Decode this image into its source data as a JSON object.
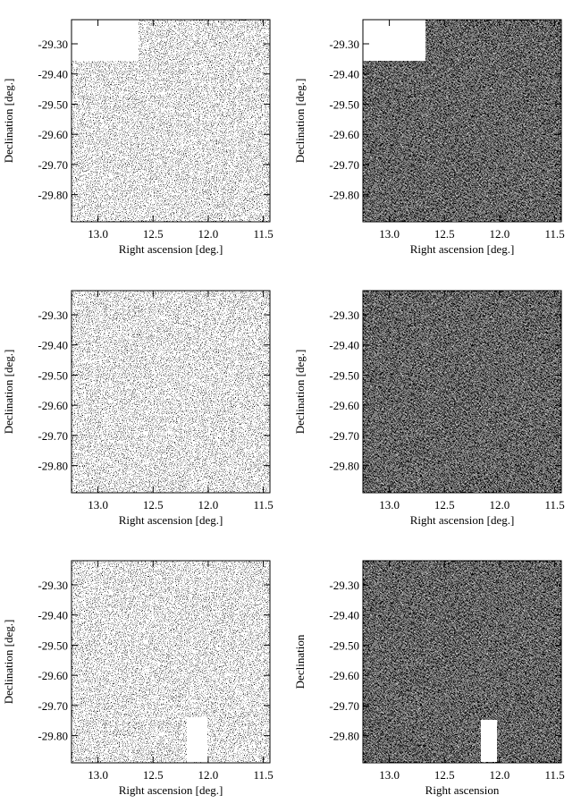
{
  "chart_data": [
    {
      "type": "scatter",
      "xlabel": "Right ascension [deg.]",
      "ylabel": "Declination [deg.]",
      "density": "sparse",
      "xlim": [
        13.24,
        11.44
      ],
      "ylim": [
        -29.89,
        -29.22
      ],
      "xticks": [
        {
          "value": 13,
          "label": "13.0"
        },
        12.5,
        {
          "value": 12,
          "label": "12.0"
        },
        11.5
      ],
      "yticks": [
        {
          "value": -29.3,
          "label": "-29.30"
        },
        {
          "value": -29.4,
          "label": "-29.40"
        },
        {
          "value": -29.5,
          "label": "-29.50"
        },
        {
          "value": -29.6,
          "label": "-29.60"
        },
        {
          "value": -29.7,
          "label": "-29.70"
        },
        {
          "value": -29.8,
          "label": "-29.80"
        }
      ]
    },
    {
      "type": "scatter",
      "xlabel": "Right ascension [deg.]",
      "ylabel": "Declination [deg.]",
      "density": "dense",
      "xlim": [
        13.24,
        11.44
      ],
      "ylim": [
        -29.89,
        -29.22
      ],
      "xticks": [
        {
          "value": 13,
          "label": "13.0"
        },
        12.5,
        {
          "value": 12,
          "label": "12.0"
        },
        11.5
      ],
      "yticks": [
        {
          "value": -29.3,
          "label": "-29.30"
        },
        {
          "value": -29.4,
          "label": "-29.40"
        },
        {
          "value": -29.5,
          "label": "-29.50"
        },
        {
          "value": -29.6,
          "label": "-29.60"
        },
        {
          "value": -29.7,
          "label": "-29.70"
        },
        {
          "value": -29.8,
          "label": "-29.80"
        }
      ]
    },
    {
      "type": "scatter",
      "xlabel": "Right ascension [deg.]",
      "ylabel": "Declination [deg.]",
      "density": "sparse",
      "xlim": [
        13.24,
        11.44
      ],
      "ylim": [
        -29.89,
        -29.22
      ],
      "xticks": [
        {
          "value": 13,
          "label": "13.0"
        },
        12.5,
        {
          "value": 12,
          "label": "12.0"
        },
        11.5
      ],
      "yticks": [
        {
          "value": -29.3,
          "label": "-29.30"
        },
        {
          "value": -29.4,
          "label": "-29.40"
        },
        {
          "value": -29.5,
          "label": "-29.50"
        },
        {
          "value": -29.6,
          "label": "-29.60"
        },
        {
          "value": -29.7,
          "label": "-29.70"
        },
        {
          "value": -29.8,
          "label": "-29.80"
        }
      ]
    },
    {
      "type": "scatter",
      "xlabel": "Right ascension [deg.]",
      "ylabel": "Declination [deg.]",
      "density": "dense",
      "xlim": [
        13.24,
        11.44
      ],
      "ylim": [
        -29.89,
        -29.22
      ],
      "xticks": [
        {
          "value": 13,
          "label": "13.0"
        },
        12.5,
        {
          "value": 12,
          "label": "12.0"
        },
        11.5
      ],
      "yticks": [
        {
          "value": -29.3,
          "label": "-29.30"
        },
        {
          "value": -29.4,
          "label": "-29.40"
        },
        {
          "value": -29.5,
          "label": "-29.50"
        },
        {
          "value": -29.6,
          "label": "-29.60"
        },
        {
          "value": -29.7,
          "label": "-29.70"
        },
        {
          "value": -29.8,
          "label": "-29.80"
        }
      ]
    },
    {
      "type": "scatter",
      "xlabel": "Right ascension [deg.]",
      "ylabel": "Declination [deg.]",
      "density": "sparse",
      "xlim": [
        13.24,
        11.44
      ],
      "ylim": [
        -29.89,
        -29.22
      ],
      "xticks": [
        {
          "value": 13,
          "label": "13.0"
        },
        12.5,
        {
          "value": 12,
          "label": "12.0"
        },
        11.5
      ],
      "yticks": [
        {
          "value": -29.3,
          "label": "-29.30"
        },
        {
          "value": -29.4,
          "label": "-29.40"
        },
        {
          "value": -29.5,
          "label": "-29.50"
        },
        {
          "value": -29.6,
          "label": "-29.60"
        },
        {
          "value": -29.7,
          "label": "-29.70"
        },
        {
          "value": -29.8,
          "label": "-29.80"
        }
      ]
    },
    {
      "type": "scatter",
      "xlabel": "Right ascension",
      "ylabel": "Declination",
      "density": "dense",
      "xlim": [
        13.24,
        11.44
      ],
      "ylim": [
        -29.89,
        -29.22
      ],
      "xticks": [
        {
          "value": 13,
          "label": "13.0"
        },
        12.5,
        {
          "value": 12,
          "label": "12.0"
        },
        11.5
      ],
      "yticks": [
        {
          "value": -29.3,
          "label": "-29.30"
        },
        {
          "value": -29.4,
          "label": "-29.40"
        },
        {
          "value": -29.5,
          "label": "-29.50"
        },
        {
          "value": -29.6,
          "label": "-29.60"
        },
        {
          "value": -29.7,
          "label": "-29.70"
        },
        {
          "value": -29.8,
          "label": "-29.80"
        }
      ]
    }
  ]
}
